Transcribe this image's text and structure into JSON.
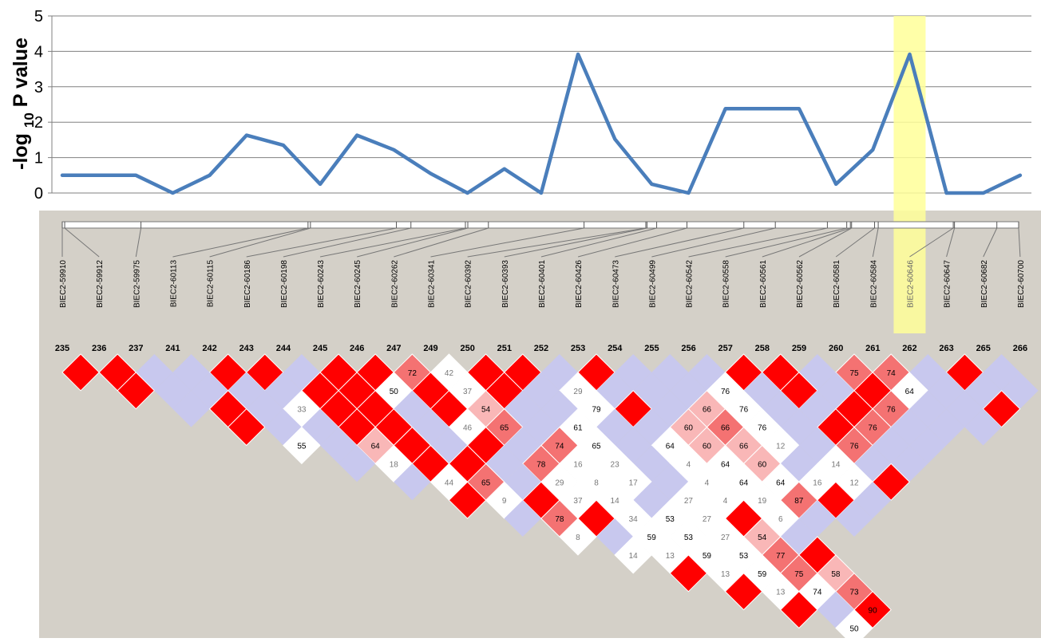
{
  "chart_data": {
    "type": "line",
    "ylabel": "-log 10 P value",
    "ylabel_parts": {
      "prefix": "-log ",
      "subscript": "10",
      "suffix": " P value"
    },
    "ylim": [
      0,
      5
    ],
    "yticks": [
      "0",
      "1",
      "2",
      "3",
      "4",
      "5"
    ],
    "grid": true,
    "colors": {
      "line": "#4a7ebb",
      "highlight": "#ffff99",
      "panel": "#d4d0c8",
      "grid": "#808080"
    },
    "highlight_marker": "BIEC2-60646",
    "series": [
      {
        "x": [
          "BIEC2-59910",
          "BIEC2-59912",
          "BIEC2-59975",
          "BIEC2-60113",
          "BIEC2-60115",
          "BIEC2-60186",
          "BIEC2-60198",
          "BIEC2-60243",
          "BIEC2-60245",
          "BIEC2-60262",
          "BIEC2-60341",
          "BIEC2-60392",
          "BIEC2-60393",
          "BIEC2-60401",
          "BIEC2-60426",
          "BIEC2-60473",
          "BIEC2-60499",
          "BIEC2-60542",
          "BIEC2-60558",
          "BIEC2-60561",
          "BIEC2-60562",
          "BIEC2-60581",
          "BIEC2-60584",
          "BIEC2-60646",
          "BIEC2-60647",
          "BIEC2-60682",
          "BIEC2-60700"
        ],
        "values": [
          0.5,
          0.5,
          0.5,
          0.0,
          0.5,
          1.63,
          1.35,
          0.25,
          1.63,
          1.22,
          0.55,
          0.0,
          0.68,
          0.0,
          3.92,
          1.52,
          0.25,
          0.0,
          2.38,
          2.38,
          2.38,
          0.25,
          1.22,
          3.92,
          0.0,
          0.0,
          0.5
        ]
      }
    ],
    "ld_plot": {
      "marker_labels": [
        "BIEC2-59910",
        "BIEC2-59912",
        "BIEC2-59975",
        "BIEC2-60113",
        "BIEC2-60115",
        "BIEC2-60186",
        "BIEC2-60198",
        "BIEC2-60243",
        "BIEC2-60245",
        "BIEC2-60262",
        "BIEC2-60341",
        "BIEC2-60392",
        "BIEC2-60393",
        "BIEC2-60401",
        "BIEC2-60426",
        "BIEC2-60473",
        "BIEC2-60499",
        "BIEC2-60542",
        "BIEC2-60558",
        "BIEC2-60561",
        "BIEC2-60562",
        "BIEC2-60581",
        "BIEC2-60584",
        "BIEC2-60646",
        "BIEC2-60647",
        "BIEC2-60682",
        "BIEC2-60700"
      ],
      "marker_positions": [
        59910,
        59912,
        59975,
        60113,
        60115,
        60186,
        60198,
        60243,
        60245,
        60262,
        60341,
        60392,
        60393,
        60401,
        60426,
        60473,
        60499,
        60542,
        60558,
        60561,
        60562,
        60581,
        60584,
        60646,
        60647,
        60682,
        60700
      ],
      "marker_numbers": [
        "235",
        "236",
        "237",
        "241",
        "242",
        "243",
        "244",
        "245",
        "246",
        "247",
        "249",
        "250",
        "251",
        "252",
        "253",
        "254",
        "255",
        "256",
        "257",
        "258",
        "259",
        "260",
        "261",
        "262",
        "263",
        "265",
        "266"
      ],
      "cells": [
        [
          1,
          "R",
          ""
        ],
        [
          2,
          "R",
          ""
        ],
        [
          3,
          "B",
          ""
        ],
        [
          4,
          "B",
          ""
        ],
        [
          5,
          "R",
          ""
        ],
        [
          6,
          "R",
          ""
        ],
        [
          7,
          "B",
          ""
        ],
        [
          8,
          "R",
          ""
        ],
        [
          9,
          "R",
          ""
        ],
        [
          10,
          "P",
          "72"
        ],
        [
          11,
          "W",
          "42"
        ],
        [
          12,
          "R",
          ""
        ],
        [
          13,
          "R",
          ""
        ],
        [
          14,
          "B",
          ""
        ],
        [
          15,
          "R",
          ""
        ],
        [
          16,
          "B",
          ""
        ],
        [
          17,
          "B",
          ""
        ],
        [
          18,
          "B",
          ""
        ],
        [
          19,
          "R",
          ""
        ],
        [
          20,
          "R",
          ""
        ],
        [
          21,
          "B",
          ""
        ],
        [
          22,
          "P",
          "75"
        ],
        [
          23,
          "P",
          "74"
        ],
        [
          24,
          "B",
          ""
        ],
        [
          25,
          "R",
          ""
        ],
        [
          26,
          "B",
          ""
        ],
        [
          2,
          "R",
          ""
        ],
        [
          3,
          "B",
          ""
        ],
        [
          4,
          "B",
          ""
        ],
        [
          5,
          "B",
          ""
        ],
        [
          6,
          "B",
          ""
        ],
        [
          7,
          "R",
          ""
        ],
        [
          8,
          "R",
          ""
        ],
        [
          9,
          "W",
          "50"
        ],
        [
          10,
          "R",
          ""
        ],
        [
          11,
          "W",
          "37"
        ],
        [
          12,
          "R",
          ""
        ],
        [
          13,
          "B",
          ""
        ],
        [
          14,
          "W",
          "29"
        ],
        [
          15,
          "B",
          ""
        ],
        [
          16,
          "B",
          ""
        ],
        [
          17,
          "B",
          ""
        ],
        [
          18,
          "W",
          "76"
        ],
        [
          19,
          "B",
          ""
        ],
        [
          20,
          "R",
          ""
        ],
        [
          21,
          "B",
          ""
        ],
        [
          22,
          "R",
          ""
        ],
        [
          23,
          "W",
          "64"
        ],
        [
          24,
          "B",
          ""
        ],
        [
          25,
          "B",
          ""
        ],
        [
          26,
          "B",
          ""
        ],
        [
          3,
          "B",
          ""
        ],
        [
          4,
          "R",
          ""
        ],
        [
          5,
          "B",
          ""
        ],
        [
          6,
          "W",
          "33"
        ],
        [
          7,
          "R",
          ""
        ],
        [
          8,
          "R",
          ""
        ],
        [
          9,
          "B",
          ""
        ],
        [
          10,
          "R",
          ""
        ],
        [
          11,
          "L",
          "54"
        ],
        [
          12,
          "B",
          ""
        ],
        [
          13,
          "B",
          ""
        ],
        [
          14,
          "W",
          "79"
        ],
        [
          15,
          "R",
          ""
        ],
        [
          16,
          "B",
          ""
        ],
        [
          17,
          "L",
          "66"
        ],
        [
          18,
          "W",
          "76"
        ],
        [
          19,
          "B",
          ""
        ],
        [
          20,
          "B",
          ""
        ],
        [
          21,
          "R",
          ""
        ],
        [
          22,
          "P",
          "76"
        ],
        [
          23,
          "B",
          ""
        ],
        [
          24,
          "B",
          ""
        ],
        [
          25,
          "R",
          ""
        ],
        [
          4,
          "R",
          ""
        ],
        [
          5,
          "B",
          ""
        ],
        [
          6,
          "B",
          ""
        ],
        [
          7,
          "R",
          ""
        ],
        [
          8,
          "R",
          ""
        ],
        [
          9,
          "B",
          ""
        ],
        [
          10,
          "W",
          "46"
        ],
        [
          11,
          "P",
          "65"
        ],
        [
          12,
          "B",
          ""
        ],
        [
          13,
          "W",
          "61"
        ],
        [
          14,
          "B",
          ""
        ],
        [
          15,
          "B",
          ""
        ],
        [
          16,
          "L",
          "60"
        ],
        [
          17,
          "P",
          "66"
        ],
        [
          18,
          "W",
          "76"
        ],
        [
          19,
          "B",
          ""
        ],
        [
          20,
          "R",
          ""
        ],
        [
          21,
          "P",
          "76"
        ],
        [
          22,
          "B",
          ""
        ],
        [
          23,
          "B",
          ""
        ],
        [
          24,
          "B",
          ""
        ],
        [
          5,
          "W",
          "55"
        ],
        [
          6,
          "B",
          ""
        ],
        [
          7,
          "L",
          "64"
        ],
        [
          8,
          "R",
          ""
        ],
        [
          9,
          "B",
          ""
        ],
        [
          10,
          "R",
          ""
        ],
        [
          11,
          "B",
          ""
        ],
        [
          12,
          "P",
          "74"
        ],
        [
          13,
          "W",
          "65"
        ],
        [
          14,
          "B",
          ""
        ],
        [
          15,
          "W",
          "64"
        ],
        [
          16,
          "L",
          "60"
        ],
        [
          17,
          "L",
          "66"
        ],
        [
          18,
          "W",
          "12"
        ],
        [
          19,
          "B",
          ""
        ],
        [
          20,
          "P",
          "76"
        ],
        [
          21,
          "B",
          ""
        ],
        [
          22,
          "B",
          ""
        ],
        [
          6,
          "B",
          ""
        ],
        [
          7,
          "W",
          "18"
        ],
        [
          8,
          "R",
          ""
        ],
        [
          9,
          "R",
          ""
        ],
        [
          10,
          "B",
          ""
        ],
        [
          11,
          "P",
          "78"
        ],
        [
          12,
          "W",
          "16"
        ],
        [
          13,
          "W",
          "23"
        ],
        [
          14,
          "B",
          ""
        ],
        [
          15,
          "W",
          "4"
        ],
        [
          16,
          "W",
          "64"
        ],
        [
          17,
          "L",
          "60"
        ],
        [
          18,
          "B",
          ""
        ],
        [
          19,
          "W",
          "14"
        ],
        [
          20,
          "B",
          ""
        ],
        [
          21,
          "B",
          ""
        ],
        [
          7,
          "B",
          ""
        ],
        [
          8,
          "W",
          "44"
        ],
        [
          9,
          "P",
          "65"
        ],
        [
          10,
          "B",
          ""
        ],
        [
          11,
          "W",
          "29"
        ],
        [
          12,
          "W",
          "8"
        ],
        [
          13,
          "W",
          "17"
        ],
        [
          14,
          "B",
          ""
        ],
        [
          15,
          "W",
          "4"
        ],
        [
          16,
          "W",
          "64"
        ],
        [
          17,
          "W",
          "64"
        ],
        [
          18,
          "W",
          "16"
        ],
        [
          19,
          "W",
          "12"
        ],
        [
          20,
          "R",
          ""
        ],
        [
          8,
          "R",
          ""
        ],
        [
          9,
          "W",
          "9"
        ],
        [
          10,
          "R",
          ""
        ],
        [
          11,
          "W",
          "37"
        ],
        [
          12,
          "W",
          "14"
        ],
        [
          13,
          "B",
          ""
        ],
        [
          14,
          "W",
          "27"
        ],
        [
          15,
          "W",
          "4"
        ],
        [
          16,
          "W",
          "19"
        ],
        [
          17,
          "P",
          "87"
        ],
        [
          18,
          "R",
          ""
        ],
        [
          19,
          "B",
          ""
        ],
        [
          9,
          "B",
          ""
        ],
        [
          10,
          "P",
          "78"
        ],
        [
          11,
          "R",
          ""
        ],
        [
          12,
          "W",
          "34"
        ],
        [
          13,
          "W",
          "53"
        ],
        [
          14,
          "W",
          "27"
        ],
        [
          15,
          "R",
          ""
        ],
        [
          16,
          "W",
          "6"
        ],
        [
          17,
          "B",
          ""
        ],
        [
          18,
          "B",
          ""
        ],
        [
          10,
          "W",
          "8"
        ],
        [
          11,
          "B",
          ""
        ],
        [
          12,
          "W",
          "59"
        ],
        [
          13,
          "W",
          "53"
        ],
        [
          14,
          "W",
          "27"
        ],
        [
          15,
          "L",
          "54"
        ],
        [
          16,
          "B",
          ""
        ],
        [
          11,
          "W",
          "14"
        ],
        [
          12,
          "W",
          "13"
        ],
        [
          13,
          "W",
          "59"
        ],
        [
          14,
          "W",
          "53"
        ],
        [
          15,
          "P",
          "77"
        ],
        [
          16,
          "R",
          ""
        ],
        [
          12,
          "R",
          ""
        ],
        [
          13,
          "W",
          "13"
        ],
        [
          14,
          "W",
          "59"
        ],
        [
          15,
          "P",
          "75"
        ],
        [
          16,
          "L",
          "58"
        ],
        [
          13,
          "R",
          ""
        ],
        [
          14,
          "W",
          "13"
        ],
        [
          15,
          "W",
          "74"
        ],
        [
          16,
          "P",
          "73"
        ],
        [
          14,
          "R",
          ""
        ],
        [
          15,
          "B",
          ""
        ],
        [
          16,
          "R",
          "90"
        ],
        [
          15,
          "W",
          "50"
        ]
      ]
    }
  }
}
